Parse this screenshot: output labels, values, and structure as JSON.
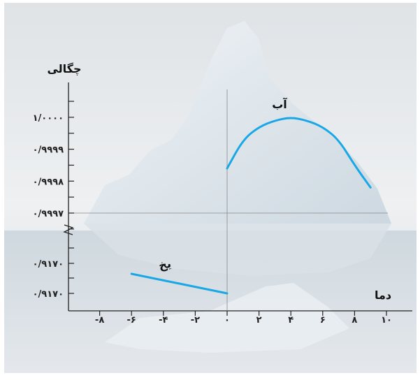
{
  "chart_data": {
    "type": "line",
    "xlabel": "دما",
    "ylabel": "چگالی",
    "xlim": [
      -9,
      10.5
    ],
    "x_ticks": [
      {
        "value": -8,
        "label": "-۸"
      },
      {
        "value": -6,
        "label": "-۶"
      },
      {
        "value": -4,
        "label": "-۴"
      },
      {
        "value": -2,
        "label": "-۲"
      },
      {
        "value": 0,
        "label": "۰"
      },
      {
        "value": 2,
        "label": "۲"
      },
      {
        "value": 4,
        "label": "۴"
      },
      {
        "value": 6,
        "label": "۶"
      },
      {
        "value": 8,
        "label": "۸"
      },
      {
        "value": 10,
        "label": "۱۰"
      }
    ],
    "y_axis_break": true,
    "y_ticks_upper": [
      {
        "value": 1.0,
        "label": "۱/۰۰۰۰"
      },
      {
        "value": 0.9999,
        "label": "۰/۹۹۹۹"
      },
      {
        "value": 0.9998,
        "label": "۰/۹۹۹۸"
      },
      {
        "value": 0.9997,
        "label": "۰/۹۹۹۷"
      }
    ],
    "y_ticks_lower": [
      {
        "value": 0.917,
        "label": "۰/۹۱۷۰"
      },
      {
        "value": 0.917,
        "label": "۰/۹۱۷۰"
      }
    ],
    "series": [
      {
        "name": "آب",
        "segment": "upper",
        "color": "#1aa7e6",
        "x": [
          0,
          1,
          2,
          3,
          4,
          5,
          6,
          7,
          8,
          9
        ],
        "y": [
          0.99984,
          0.99993,
          0.99997,
          0.99999,
          1.0,
          0.99999,
          0.99997,
          0.99993,
          0.99985,
          0.99978
        ]
      },
      {
        "name": "یخ",
        "segment": "lower",
        "color": "#1aa7e6",
        "x": [
          -6,
          0
        ],
        "y": [
          0.91702,
          0.91688
        ]
      }
    ]
  }
}
